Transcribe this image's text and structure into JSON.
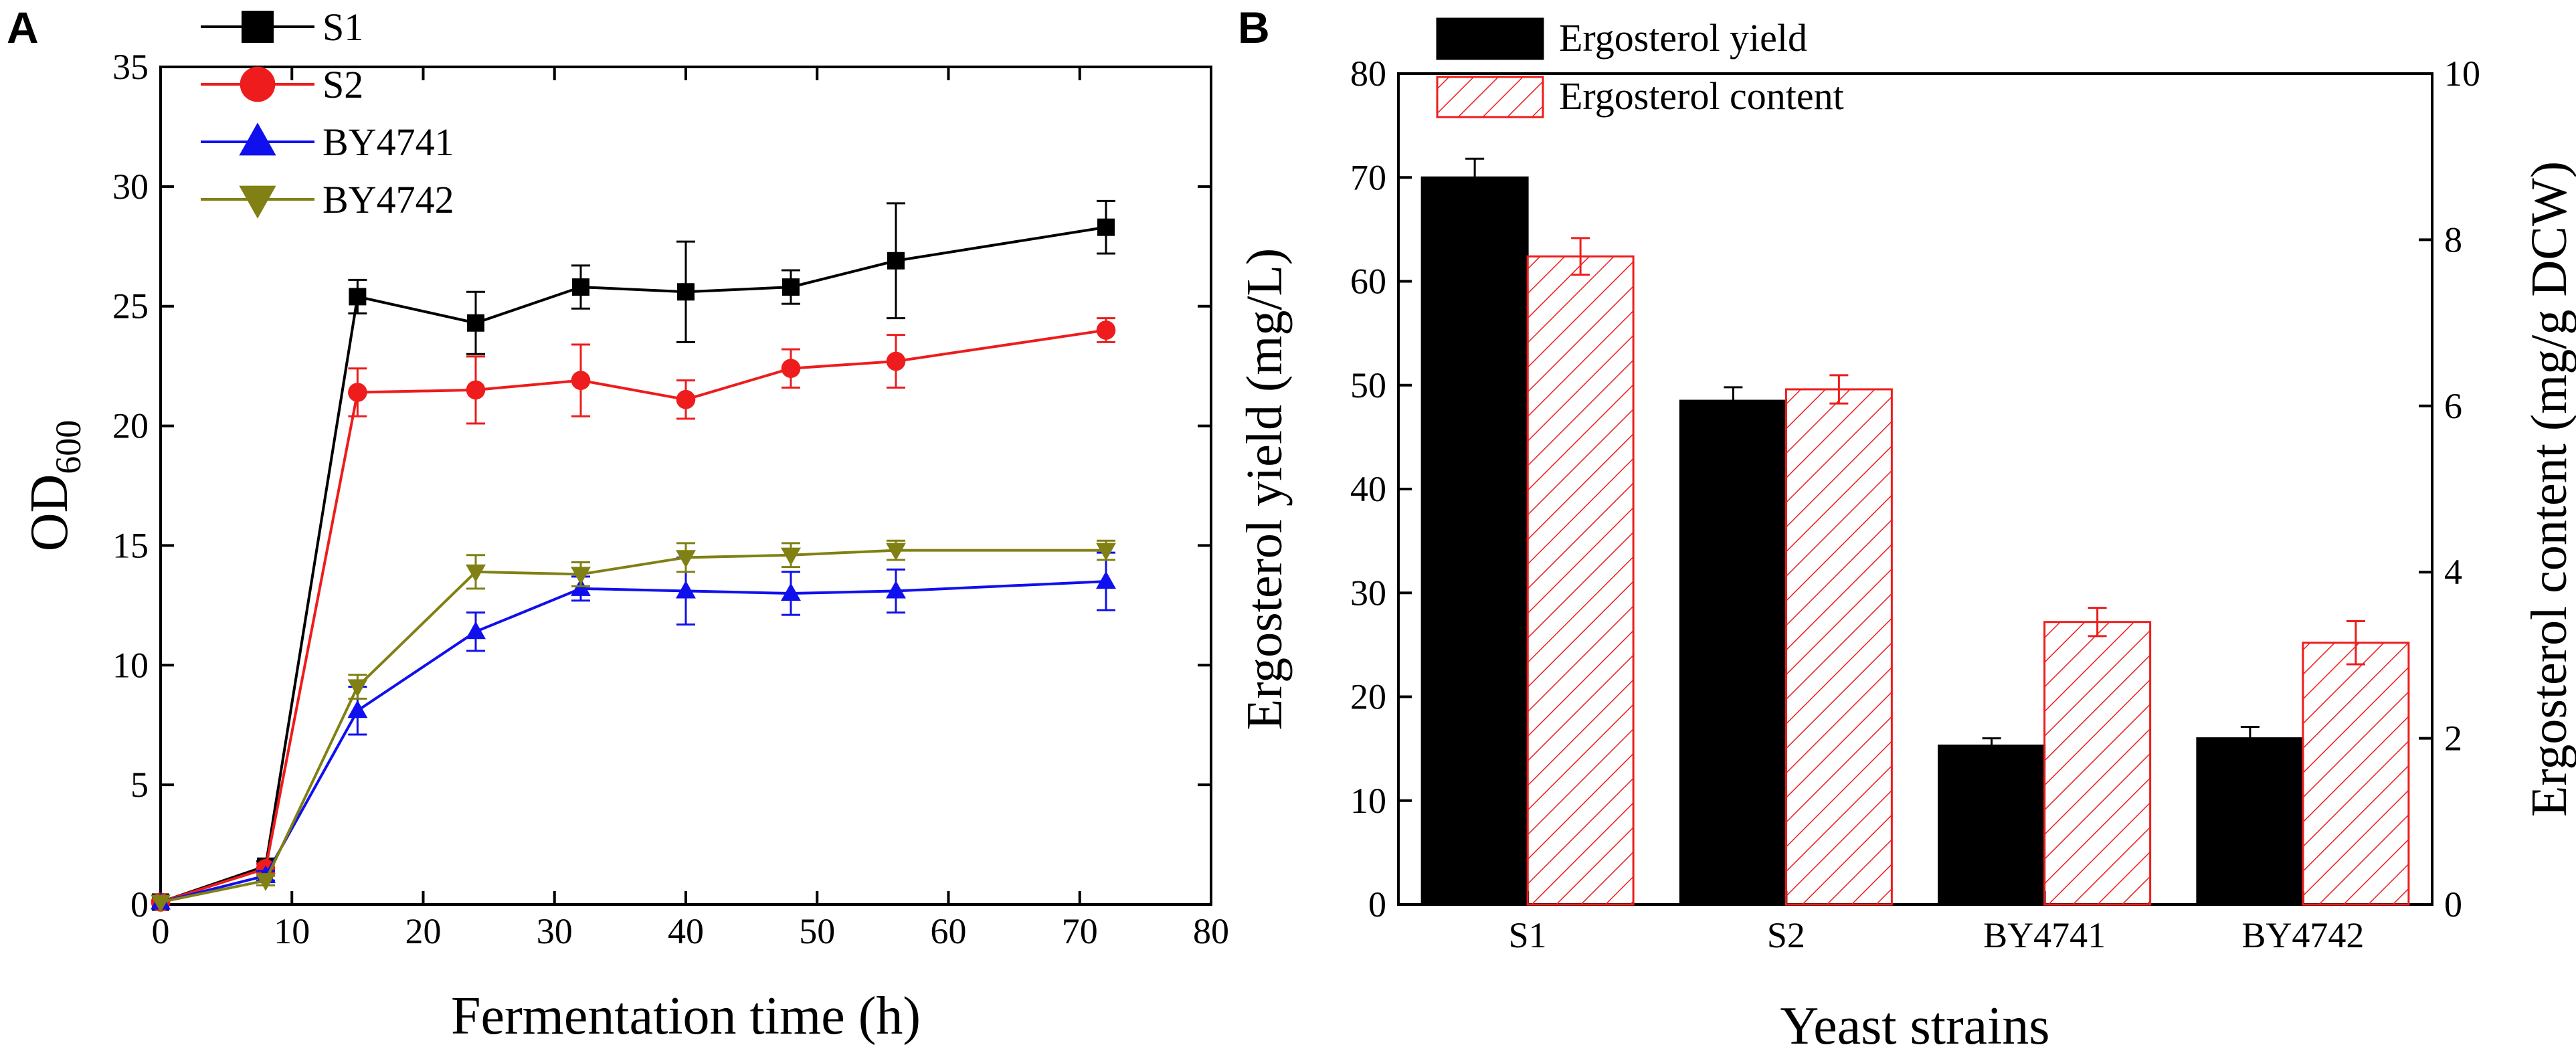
{
  "chart_data": [
    {
      "panel": "A",
      "type": "line",
      "title": "",
      "xlabel": "Fermentation time (h)",
      "ylabel_main": "OD",
      "ylabel_sub": "600",
      "xlim": [
        0,
        80
      ],
      "ylim": [
        0,
        35
      ],
      "xticks": [
        0,
        10,
        20,
        30,
        40,
        50,
        60,
        70,
        80
      ],
      "yticks": [
        0,
        5,
        10,
        15,
        20,
        25,
        30,
        35
      ],
      "legend_position": "top-left",
      "x": [
        0,
        8,
        15,
        24,
        32,
        40,
        48,
        56,
        72
      ],
      "series": [
        {
          "name": "S1",
          "color": "#000000",
          "marker": "square",
          "values": [
            0.1,
            1.6,
            25.4,
            24.3,
            25.8,
            25.6,
            25.8,
            26.9,
            28.3
          ],
          "errors": [
            0.1,
            0.2,
            0.7,
            1.3,
            0.9,
            2.1,
            0.7,
            2.4,
            1.1
          ]
        },
        {
          "name": "S2",
          "color": "#ee1c1c",
          "marker": "circle",
          "values": [
            0.1,
            1.5,
            21.4,
            21.5,
            21.9,
            21.1,
            22.4,
            22.7,
            24.0
          ],
          "errors": [
            0.1,
            0.2,
            1.0,
            1.4,
            1.5,
            0.8,
            0.8,
            1.1,
            0.5
          ]
        },
        {
          "name": "BY4741",
          "color": "#1010ee",
          "marker": "triangle-up",
          "values": [
            0.1,
            1.2,
            8.1,
            11.4,
            13.2,
            13.1,
            13.0,
            13.1,
            13.5
          ],
          "errors": [
            0.1,
            0.2,
            1.0,
            0.8,
            0.5,
            1.4,
            0.9,
            0.9,
            1.2
          ]
        },
        {
          "name": "BY4742",
          "color": "#808014",
          "marker": "triangle-down",
          "values": [
            0.1,
            1.0,
            9.1,
            13.9,
            13.8,
            14.5,
            14.6,
            14.8,
            14.8
          ],
          "errors": [
            0.1,
            0.2,
            0.5,
            0.7,
            0.5,
            0.6,
            0.5,
            0.4,
            0.4
          ]
        }
      ]
    },
    {
      "panel": "B",
      "type": "bar",
      "title": "",
      "xlabel": "Yeast strains",
      "ylabel": "Ergosterol yield (mg/L)",
      "ylabel_right": "Ergosterol content (mg/g DCW)",
      "categories": [
        "S1",
        "S2",
        "BY4741",
        "BY4742"
      ],
      "ylim": [
        0,
        80
      ],
      "ylim_right": [
        0,
        10
      ],
      "yticks": [
        0,
        10,
        20,
        30,
        40,
        50,
        60,
        70,
        80
      ],
      "yticks_right": [
        0,
        2,
        4,
        6,
        8,
        10
      ],
      "legend_position": "top-left",
      "series": [
        {
          "name": "Ergosterol yield",
          "axis": "left",
          "style": "solid",
          "color": "#000000",
          "values": [
            70.0,
            48.5,
            15.3,
            16.0
          ],
          "errors": [
            1.8,
            1.3,
            0.7,
            1.1
          ]
        },
        {
          "name": "Ergosterol content",
          "axis": "right",
          "style": "hatched",
          "color": "#ee1c1c",
          "values": [
            7.8,
            6.2,
            3.4,
            3.15
          ],
          "errors": [
            0.22,
            0.17,
            0.17,
            0.26
          ]
        }
      ]
    }
  ]
}
